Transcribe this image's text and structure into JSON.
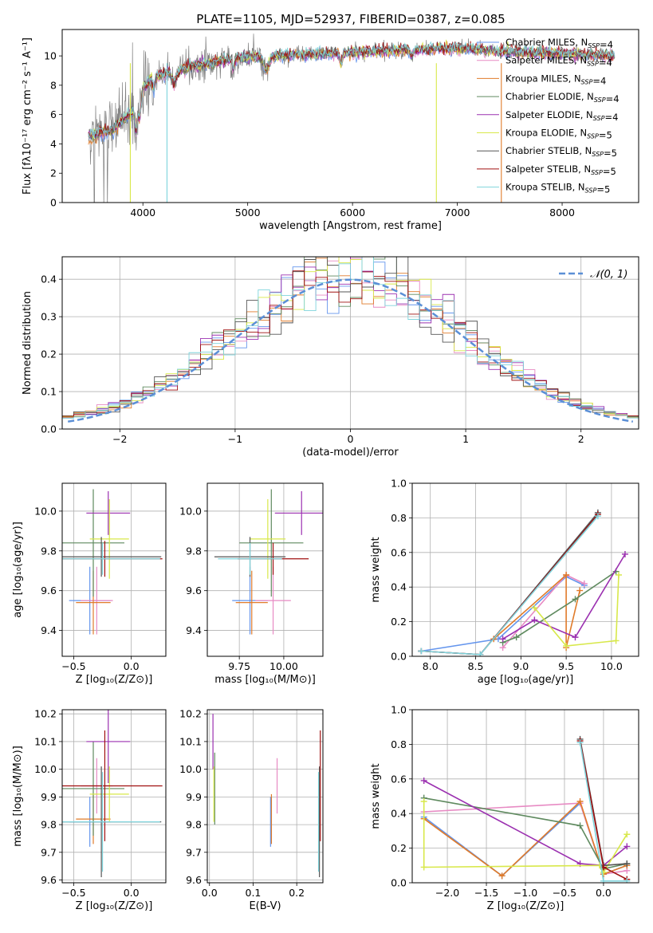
{
  "figure": {
    "title": "PLATE=1105, MJD=52937, FIBERID=0387, z=0.085"
  },
  "model_colors": [
    "#6495ed",
    "#e78ac3",
    "#e07b2a",
    "#5f8a5f",
    "#9b30b0",
    "#d8e84a",
    "#555555",
    "#a01010",
    "#7fd4dc"
  ],
  "chart_data": [
    {
      "id": "spectrum",
      "type": "line",
      "xlabel": "wavelength [Angstrom, rest frame]",
      "ylabel": "Flux [fλ10⁻¹⁷ erg cm⁻² s⁻¹ A⁻¹]",
      "xlim": [
        3230,
        8730
      ],
      "ylim": [
        0,
        11.8
      ],
      "xticks": [
        4000,
        5000,
        6000,
        7000,
        8000
      ],
      "yticks": [
        0,
        2,
        4,
        6,
        8,
        10
      ],
      "legend": [
        "Chabrier MILES, N_SSP=4",
        "Salpeter MILES, N_SSP=4",
        "Kroupa MILES, N_SSP=4",
        "Chabrier ELODIE, N_SSP=4",
        "Salpeter ELODIE, N_SSP=4",
        "Kroupa ELODIE, N_SSP=5",
        "Chabrier STELIB, N_SSP=5",
        "Salpeter STELIB, N_SSP=5",
        "Kroupa STELIB, N_SSP=5"
      ],
      "legend_position": "right",
      "data_color": "#808080",
      "continuum": {
        "x": [
          3480,
          3700,
          3900,
          4000,
          4100,
          4300,
          4500,
          4800,
          5000,
          5300,
          5600,
          5900,
          6200,
          6500,
          6800,
          7100,
          7400,
          7800,
          8200,
          8500
        ],
        "y": [
          4.6,
          4.9,
          6.2,
          7.8,
          8.5,
          9.0,
          9.3,
          9.7,
          9.9,
          10.0,
          10.1,
          10.2,
          10.3,
          10.4,
          10.5,
          10.5,
          10.3,
          10.2,
          10.1,
          10.0
        ]
      }
    },
    {
      "id": "residuals",
      "type": "histogram",
      "xlabel": "(data-model)/error",
      "ylabel": "Normed distribution",
      "xlim": [
        -2.5,
        2.5
      ],
      "ylim": [
        0,
        0.46
      ],
      "xticks": [
        -2,
        -1,
        0,
        1,
        2
      ],
      "yticks": [
        0.0,
        0.1,
        0.2,
        0.3,
        0.4
      ],
      "bin_width": 0.1,
      "gaussian": {
        "label": "𝒩(0, 1)",
        "mean": 0,
        "sigma": 1,
        "color": "#5b8fd6"
      },
      "legend_position": "top-right"
    },
    {
      "id": "age-vs-Z",
      "type": "errorbar",
      "xlabel": "Z [log₁₀(Z/Z⊙)]",
      "ylabel": "age  [log₁₀(age/yr)]",
      "xlim": [
        -0.6,
        0.3
      ],
      "ylim": [
        9.27,
        10.14
      ],
      "xticks": [
        -0.5,
        0.0
      ],
      "yticks": [
        9.4,
        9.6,
        9.8,
        10.0
      ],
      "points": [
        {
          "x": -0.36,
          "y": 9.55,
          "xerr": 0.18,
          "yerr": 0.17
        },
        {
          "x": -0.3,
          "y": 9.55,
          "xerr": 0.14,
          "yerr": 0.17
        },
        {
          "x": -0.33,
          "y": 9.54,
          "xerr": 0.15,
          "yerr": 0.16
        },
        {
          "x": -0.33,
          "y": 9.84,
          "xerr": 0.27,
          "yerr": 0.27
        },
        {
          "x": -0.2,
          "y": 9.99,
          "xerr": 0.19,
          "yerr": 0.11
        },
        {
          "x": -0.19,
          "y": 9.86,
          "xerr": 0.17,
          "yerr": 0.2
        },
        {
          "x": -0.26,
          "y": 9.77,
          "xerr": 0.52,
          "yerr": 0.1
        },
        {
          "x": -0.23,
          "y": 9.76,
          "xerr": 0.5,
          "yerr": 0.09
        },
        {
          "x": -0.25,
          "y": 9.76,
          "xerr": 0.5,
          "yerr": 0.08
        }
      ]
    },
    {
      "id": "age-vs-mass",
      "type": "errorbar",
      "xlabel": "mass [log₁₀(M/M⊙)]",
      "ylabel": "",
      "xlim": [
        9.57,
        10.22
      ],
      "ylim": [
        9.27,
        10.14
      ],
      "xticks": [
        9.75,
        10.0
      ],
      "yticks": [
        9.4,
        9.6,
        9.8,
        10.0
      ],
      "points": [
        {
          "x": 9.81,
          "y": 9.55,
          "xerr": 0.1,
          "yerr": 0.17
        },
        {
          "x": 9.94,
          "y": 9.55,
          "xerr": 0.1,
          "yerr": 0.17
        },
        {
          "x": 9.82,
          "y": 9.54,
          "xerr": 0.09,
          "yerr": 0.16
        },
        {
          "x": 9.93,
          "y": 9.84,
          "xerr": 0.18,
          "yerr": 0.27
        },
        {
          "x": 10.1,
          "y": 9.99,
          "xerr": 0.15,
          "yerr": 0.11
        },
        {
          "x": 9.91,
          "y": 9.86,
          "xerr": 0.1,
          "yerr": 0.2
        },
        {
          "x": 9.81,
          "y": 9.77,
          "xerr": 0.2,
          "yerr": 0.1
        },
        {
          "x": 9.94,
          "y": 9.76,
          "xerr": 0.2,
          "yerr": 0.08
        },
        {
          "x": 9.81,
          "y": 9.76,
          "xerr": 0.18,
          "yerr": 0.08
        }
      ]
    },
    {
      "id": "mass-weight-vs-age",
      "type": "line",
      "xlabel": "age  [log₁₀(age/yr)]",
      "ylabel": "mass weight",
      "xlim": [
        7.8,
        10.3
      ],
      "ylim": [
        0.0,
        1.0
      ],
      "xticks": [
        8.0,
        8.5,
        9.0,
        9.5,
        10.0
      ],
      "yticks": [
        0.0,
        0.2,
        0.4,
        0.6,
        0.8,
        1.0
      ],
      "series": [
        {
          "x": [
            7.9,
            8.75,
            9.5,
            9.7
          ],
          "y": [
            0.03,
            0.1,
            0.46,
            0.41
          ]
        },
        {
          "x": [
            8.8,
            9.5,
            9.7
          ],
          "y": [
            0.05,
            0.47,
            0.42
          ]
        },
        {
          "x": [
            8.7,
            9.5,
            9.5,
            9.65
          ],
          "y": [
            0.1,
            0.47,
            0.05,
            0.38
          ]
        },
        {
          "x": [
            8.8,
            8.95,
            9.6,
            10.05
          ],
          "y": [
            0.08,
            0.11,
            0.33,
            0.49
          ]
        },
        {
          "x": [
            8.8,
            9.15,
            9.6,
            10.15
          ],
          "y": [
            0.1,
            0.21,
            0.11,
            0.59
          ]
        },
        {
          "x": [
            9.15,
            9.5,
            10.05,
            10.08
          ],
          "y": [
            0.28,
            0.06,
            0.09,
            0.47
          ]
        },
        {
          "x": [
            7.9,
            8.55,
            9.85
          ],
          "y": [
            0.03,
            0.01,
            0.83
          ]
        },
        {
          "x": [
            7.9,
            8.55,
            9.85
          ],
          "y": [
            0.03,
            0.01,
            0.82
          ]
        },
        {
          "x": [
            7.9,
            8.55,
            9.85
          ],
          "y": [
            0.03,
            0.01,
            0.81
          ]
        }
      ]
    },
    {
      "id": "mass-vs-Z",
      "type": "errorbar",
      "xlabel": "Z [log₁₀(Z/Z⊙)]",
      "ylabel": "mass [log₁₀(M/M⊙)]",
      "xlim": [
        -0.6,
        0.3
      ],
      "ylim": [
        9.59,
        10.215
      ],
      "xticks": [
        -0.5,
        0.0
      ],
      "yticks": [
        9.6,
        9.7,
        9.8,
        9.9,
        10.0,
        10.1,
        10.2
      ],
      "points": [
        {
          "x": -0.36,
          "y": 9.81,
          "xerr": 0.18,
          "yerr": 0.09
        },
        {
          "x": -0.3,
          "y": 9.94,
          "xerr": 0.14,
          "yerr": 0.1
        },
        {
          "x": -0.33,
          "y": 9.82,
          "xerr": 0.15,
          "yerr": 0.09
        },
        {
          "x": -0.33,
          "y": 9.93,
          "xerr": 0.27,
          "yerr": 0.17
        },
        {
          "x": -0.2,
          "y": 10.1,
          "xerr": 0.19,
          "yerr": 0.15
        },
        {
          "x": -0.19,
          "y": 9.91,
          "xerr": 0.17,
          "yerr": 0.1
        },
        {
          "x": -0.26,
          "y": 9.81,
          "xerr": 0.52,
          "yerr": 0.2
        },
        {
          "x": -0.23,
          "y": 9.94,
          "xerr": 0.5,
          "yerr": 0.2
        },
        {
          "x": -0.25,
          "y": 9.81,
          "xerr": 0.5,
          "yerr": 0.18
        }
      ]
    },
    {
      "id": "mass-vs-ebv",
      "type": "errorbar",
      "xlabel": "E(B-V)",
      "ylabel": "",
      "xlim": [
        -0.005,
        0.26
      ],
      "ylim": [
        9.59,
        10.215
      ],
      "xticks": [
        0.0,
        0.1,
        0.2
      ],
      "yticks": [
        9.6,
        9.7,
        9.8,
        9.9,
        10.0,
        10.1,
        10.2
      ],
      "points": [
        {
          "x": 0.14,
          "y": 9.81,
          "xerr": 0.0,
          "yerr": 0.09
        },
        {
          "x": 0.155,
          "y": 9.94,
          "xerr": 0.0,
          "yerr": 0.1
        },
        {
          "x": 0.142,
          "y": 9.82,
          "xerr": 0.0,
          "yerr": 0.09
        },
        {
          "x": 0.012,
          "y": 9.93,
          "xerr": 0.0,
          "yerr": 0.13
        },
        {
          "x": 0.008,
          "y": 10.1,
          "xerr": 0.0,
          "yerr": 0.1
        },
        {
          "x": 0.01,
          "y": 9.91,
          "xerr": 0.0,
          "yerr": 0.1
        },
        {
          "x": 0.252,
          "y": 9.81,
          "xerr": 0.0,
          "yerr": 0.2
        },
        {
          "x": 0.254,
          "y": 9.94,
          "xerr": 0.0,
          "yerr": 0.2
        },
        {
          "x": 0.25,
          "y": 9.81,
          "xerr": 0.0,
          "yerr": 0.18
        }
      ]
    },
    {
      "id": "mass-weight-vs-Z",
      "type": "line",
      "xlabel": "Z [log₁₀(Z/Z⊙)]",
      "ylabel": "mass weight",
      "xlim": [
        -2.45,
        0.45
      ],
      "ylim": [
        0.0,
        1.0
      ],
      "xticks": [
        -2.0,
        -1.5,
        -1.0,
        -0.5,
        0.0
      ],
      "yticks": [
        0.0,
        0.2,
        0.4,
        0.6,
        0.8,
        1.0
      ],
      "series": [
        {
          "x": [
            -2.3,
            -1.3,
            -0.3,
            0.0,
            0.3
          ],
          "y": [
            0.38,
            0.04,
            0.46,
            0.05,
            0.1
          ]
        },
        {
          "x": [
            -2.3,
            -0.3,
            0.0,
            0.3
          ],
          "y": [
            0.41,
            0.46,
            0.05,
            0.07
          ]
        },
        {
          "x": [
            -2.3,
            -1.3,
            -0.3,
            0.0,
            0.3
          ],
          "y": [
            0.37,
            0.04,
            0.47,
            0.05,
            0.1
          ]
        },
        {
          "x": [
            -2.3,
            -0.3,
            0.0,
            0.3
          ],
          "y": [
            0.49,
            0.33,
            0.08,
            0.11
          ]
        },
        {
          "x": [
            -2.3,
            -0.3,
            0.0,
            0.3
          ],
          "y": [
            0.59,
            0.11,
            0.1,
            0.21
          ]
        },
        {
          "x": [
            -2.3,
            -2.3,
            -0.05,
            0.0,
            0.3
          ],
          "y": [
            0.47,
            0.09,
            0.1,
            0.06,
            0.28
          ]
        },
        {
          "x": [
            -0.3,
            0.0,
            0.3
          ],
          "y": [
            0.83,
            0.1,
            0.11
          ]
        },
        {
          "x": [
            -0.3,
            0.0,
            0.3
          ],
          "y": [
            0.82,
            0.09,
            0.02
          ]
        },
        {
          "x": [
            -0.3,
            0.0,
            0.3
          ],
          "y": [
            0.81,
            0.01,
            0.01
          ]
        }
      ]
    }
  ]
}
